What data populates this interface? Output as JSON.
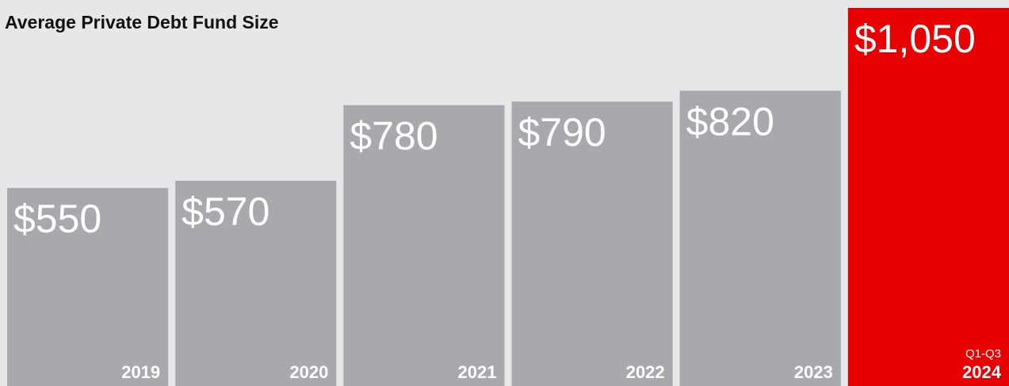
{
  "chart_data": {
    "type": "bar",
    "title": "Average Private Debt Fund Size",
    "categories": [
      "2019",
      "2020",
      "2021",
      "2022",
      "2023",
      "2024"
    ],
    "values": [
      550,
      570,
      780,
      790,
      820,
      1050
    ],
    "value_labels": [
      "$550",
      "$570",
      "$780",
      "$790",
      "$820",
      "$1,050"
    ],
    "colors": [
      "#a7a9ac",
      "#a7a9ac",
      "#a7a9ac",
      "#a7a9ac",
      "#a7a9ac",
      "#e60000"
    ],
    "annotation": "Q1-Q3"
  }
}
